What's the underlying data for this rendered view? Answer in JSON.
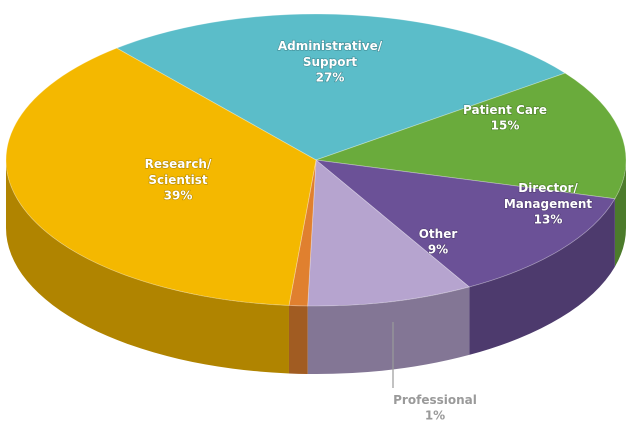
{
  "chart_data": {
    "type": "pie3d",
    "categories": [
      "Administrative/Support",
      "Patient Care",
      "Director/Management",
      "Other",
      "Professional",
      "Research/Scientist"
    ],
    "values": [
      27,
      15,
      13,
      9,
      1,
      39
    ],
    "value_labels": [
      "27%",
      "15%",
      "13%",
      "9%",
      "1%",
      "39%"
    ],
    "colors": [
      "#5bbdc9",
      "#6aab3c",
      "#6b5197",
      "#b6a4cf",
      "#e0802f",
      "#f4b800"
    ]
  }
}
